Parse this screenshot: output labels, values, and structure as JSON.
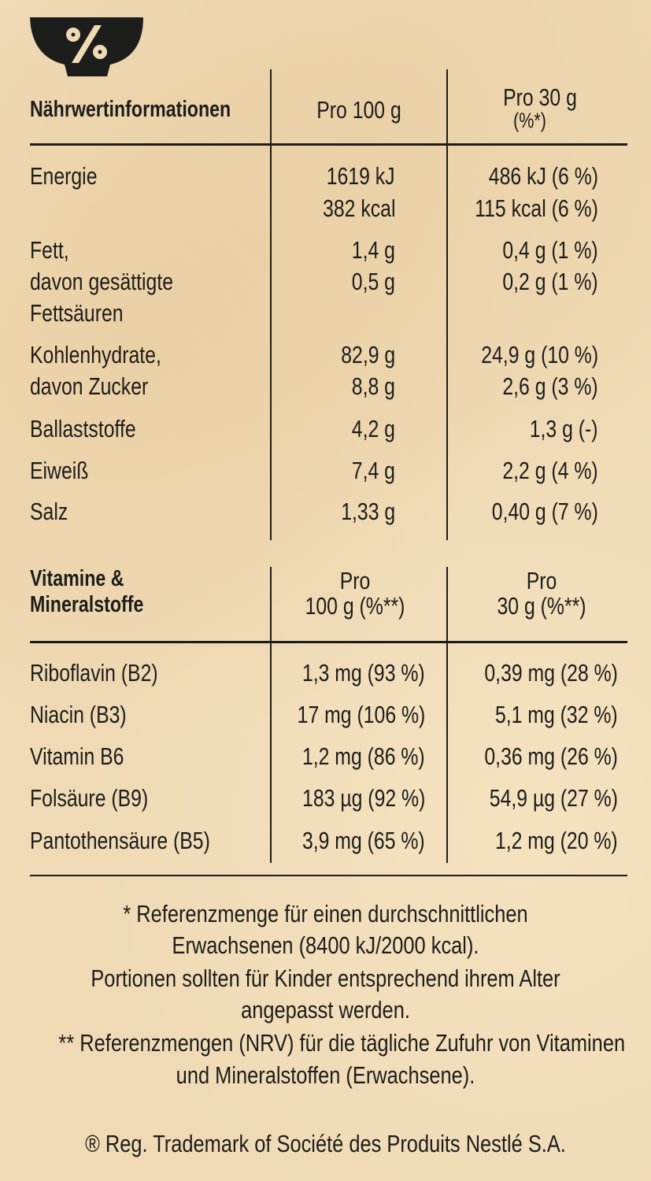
{
  "icon": "bowl-percent-icon",
  "nutrition": {
    "header": {
      "label": "Nährwertinformationen",
      "col1": "Pro 100 g",
      "col2_line1": "Pro 30 g",
      "col2_line2": "(%*)"
    },
    "rows": [
      {
        "label": "Energie",
        "v100": "1619 kJ",
        "v30": "486 kJ (6 %)"
      },
      {
        "label": "",
        "v100": "382 kcal",
        "v30": "115 kcal (6 %)"
      },
      {
        "label": "Fett,",
        "v100": "1,4 g",
        "v30": "0,4 g (1 %)"
      },
      {
        "label": "davon gesättigte",
        "v100": "0,5 g",
        "v30": "0,2 g (1 %)"
      },
      {
        "label": "Fettsäuren",
        "v100": "",
        "v30": ""
      },
      {
        "label": "Kohlenhydrate,",
        "v100": "82,9 g",
        "v30": "24,9 g (10 %)"
      },
      {
        "label": "davon Zucker",
        "v100": "8,8 g",
        "v30": "2,6 g (3 %)"
      },
      {
        "label": "Ballaststoffe",
        "v100": "4,2 g",
        "v30": "1,3 g (-)"
      },
      {
        "label": "Eiweiß",
        "v100": "7,4 g",
        "v30": "2,2 g (4 %)"
      },
      {
        "label": "Salz",
        "v100": "1,33 g",
        "v30": "0,40 g (7 %)"
      }
    ]
  },
  "vitamins": {
    "header": {
      "label_line1": "Vitamine &",
      "label_line2": "Mineralstoffe",
      "col1_line1": "Pro",
      "col1_line2": "100 g (%**)",
      "col2_line1": "Pro",
      "col2_line2": "30 g (%**)"
    },
    "rows": [
      {
        "label": "Riboflavin (B2)",
        "v100": "1,3 mg (93 %)",
        "v30": "0,39 mg (28 %)"
      },
      {
        "label": "Niacin (B3)",
        "v100": "17 mg (106 %)",
        "v30": "5,1 mg (32 %)"
      },
      {
        "label": "Vitamin B6",
        "v100": "1,2 mg (86 %)",
        "v30": "0,36 mg (26 %)"
      },
      {
        "label": "Folsäure (B9)",
        "v100": "183 µg (92 %)",
        "v30": "54,9 µg (27 %)"
      },
      {
        "label": "Pantothensäure (B5)",
        "v100": "3,9 mg (65 %)",
        "v30": "1,2 mg (20 %)"
      }
    ]
  },
  "footnotes": [
    "* Referenzmenge für einen durchschnittlichen",
    "Erwachsenen (8400 kJ/2000 kcal).",
    "Portionen sollten für Kinder entsprechend ihrem Alter",
    "angepasst werden.",
    "** Referenzmengen (NRV) für die tägliche Zufuhr von Vitaminen",
    "und Mineralstoffen (Erwachsene)."
  ],
  "trademark": "® Reg. Trademark of Société des Produits Nestlé S.A."
}
